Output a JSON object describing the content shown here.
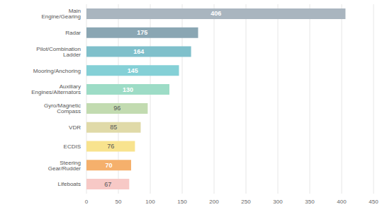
{
  "chart_data": {
    "type": "bar",
    "orientation": "horizontal",
    "categories": [
      "Main Engine/Gearing",
      "Radar",
      "Pilot/Combination Ladder",
      "Mooring/Anchoring",
      "Auxiliary Engines/Alternators",
      "Gyro/Magnetic Compass",
      "VDR",
      "ECDIS",
      "Steering Gear/Rudder",
      "Lifeboats"
    ],
    "values": [
      406,
      175,
      164,
      145,
      130,
      96,
      85,
      76,
      70,
      67
    ],
    "colors": [
      "#a9b5bf",
      "#8aa6b3",
      "#7fc0cb",
      "#84d0d6",
      "#9ddcc6",
      "#c2dbb0",
      "#e0daa8",
      "#f8e38e",
      "#f5b06c",
      "#f7c9c6"
    ],
    "xlim": [
      0,
      450
    ],
    "xticks": [
      0,
      50,
      100,
      150,
      200,
      250,
      300,
      350,
      400,
      450
    ],
    "grid": true,
    "data_labels": true
  }
}
